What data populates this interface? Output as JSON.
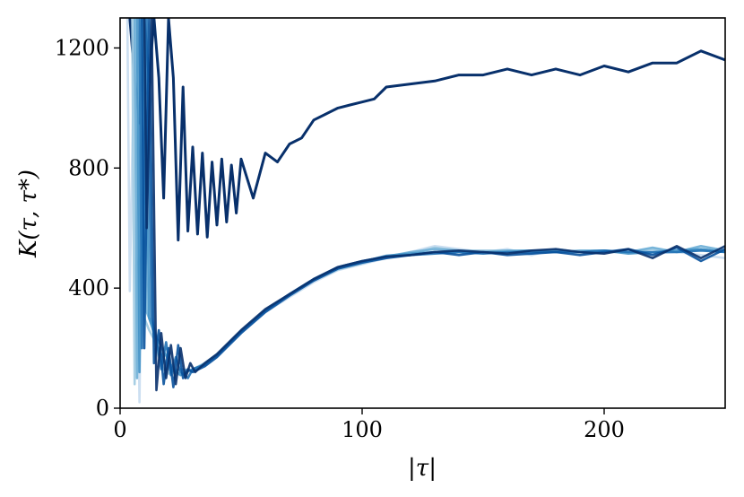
{
  "chart_data": {
    "type": "line",
    "title": "",
    "xlabel": "|τ|",
    "ylabel": "K(τ, τ*)",
    "xlim": [
      0,
      250
    ],
    "ylim": [
      0,
      1300
    ],
    "xticks": [
      0,
      100,
      200
    ],
    "yticks": [
      0,
      400,
      800,
      1200
    ],
    "xtick_labels": [
      "0",
      "100",
      "200"
    ],
    "ytick_labels": [
      "0",
      "400",
      "800",
      "1200"
    ],
    "grid": false,
    "legend": "none",
    "colors": [
      "#c6dbef",
      "#9ecae1",
      "#6baed6",
      "#4292c6",
      "#2171b5",
      "#08519c",
      "#08306b"
    ],
    "series": [
      {
        "color": "#08306b",
        "x": [
          4,
          6,
          8,
          10,
          12,
          14,
          16,
          18,
          20,
          22,
          24,
          26,
          28,
          30,
          32,
          34,
          36,
          38,
          40,
          42,
          44,
          46,
          48,
          50,
          55,
          60,
          65,
          70,
          75,
          80,
          85,
          90,
          95,
          100,
          105,
          110,
          120,
          130,
          140,
          150,
          160,
          170,
          180,
          190,
          200,
          210,
          220,
          230,
          240,
          250
        ],
        "y": [
          1300,
          1100,
          950,
          1300,
          1090,
          1300,
          1100,
          700,
          1300,
          1100,
          560,
          1070,
          590,
          870,
          580,
          850,
          570,
          820,
          610,
          830,
          620,
          810,
          650,
          830,
          700,
          850,
          820,
          880,
          900,
          960,
          980,
          1000,
          1010,
          1020,
          1030,
          1070,
          1080,
          1090,
          1110,
          1110,
          1130,
          1110,
          1130,
          1110,
          1140,
          1120,
          1150,
          1150,
          1190,
          1160
        ]
      },
      {
        "color": "#c6dbef",
        "x": [
          3,
          4,
          6,
          8,
          10,
          12,
          14,
          16,
          18,
          20,
          25,
          30,
          35,
          40,
          50,
          60,
          70,
          80,
          90,
          100,
          110,
          120,
          130,
          140,
          150,
          160,
          170,
          180,
          190,
          200,
          210,
          220,
          230,
          240,
          250
        ],
        "y": [
          1300,
          390,
          1300,
          20,
          1300,
          300,
          260,
          200,
          150,
          120,
          110,
          130,
          140,
          170,
          250,
          320,
          370,
          420,
          460,
          480,
          500,
          520,
          540,
          530,
          520,
          530,
          510,
          530,
          520,
          520,
          525,
          515,
          520,
          510,
          500
        ]
      },
      {
        "color": "#9ecae1",
        "x": [
          5,
          6,
          8,
          10,
          12,
          14,
          16,
          18,
          20,
          25,
          30,
          35,
          40,
          50,
          60,
          70,
          80,
          90,
          100,
          110,
          120,
          130,
          140,
          150,
          160,
          170,
          180,
          190,
          200,
          210,
          220,
          230,
          240,
          250
        ],
        "y": [
          1300,
          80,
          1300,
          300,
          260,
          230,
          170,
          130,
          115,
          120,
          130,
          150,
          175,
          255,
          325,
          375,
          425,
          462,
          482,
          505,
          515,
          535,
          525,
          525,
          525,
          515,
          530,
          520,
          520,
          520,
          530,
          520,
          530,
          520
        ]
      },
      {
        "color": "#6baed6",
        "x": [
          6,
          7,
          9,
          11,
          13,
          15,
          17,
          19,
          21,
          25,
          30,
          35,
          40,
          50,
          60,
          70,
          80,
          90,
          100,
          110,
          120,
          130,
          140,
          150,
          160,
          170,
          180,
          190,
          200,
          210,
          220,
          230,
          240,
          250
        ],
        "y": [
          1300,
          100,
          1300,
          320,
          280,
          210,
          180,
          150,
          120,
          130,
          125,
          150,
          180,
          258,
          328,
          378,
          428,
          465,
          485,
          505,
          520,
          530,
          525,
          520,
          525,
          525,
          520,
          525,
          525,
          520,
          535,
          520,
          540,
          525
        ]
      },
      {
        "color": "#4292c6",
        "x": [
          7,
          8,
          10,
          12,
          14,
          16,
          18,
          20,
          22,
          25,
          30,
          35,
          40,
          50,
          60,
          70,
          80,
          90,
          100,
          110,
          120,
          130,
          140,
          150,
          160,
          170,
          180,
          190,
          200,
          210,
          220,
          230,
          240,
          250
        ],
        "y": [
          1300,
          120,
          1300,
          300,
          250,
          220,
          190,
          160,
          130,
          110,
          130,
          145,
          175,
          255,
          325,
          380,
          430,
          468,
          488,
          508,
          515,
          520,
          520,
          520,
          520,
          525,
          525,
          520,
          525,
          515,
          520,
          525,
          530,
          520
        ]
      },
      {
        "color": "#2171b5",
        "x": [
          8,
          9,
          11,
          13,
          15,
          17,
          19,
          21,
          23,
          25,
          28,
          30,
          35,
          40,
          50,
          60,
          70,
          80,
          90,
          100,
          110,
          120,
          130,
          140,
          150,
          160,
          170,
          180,
          190,
          200,
          210,
          220,
          230,
          240,
          250
        ],
        "y": [
          1300,
          200,
          1300,
          300,
          230,
          130,
          220,
          110,
          170,
          120,
          100,
          130,
          145,
          175,
          255,
          325,
          380,
          430,
          470,
          490,
          505,
          510,
          515,
          520,
          515,
          520,
          520,
          520,
          520,
          525,
          520,
          520,
          520,
          525,
          520
        ]
      },
      {
        "color": "#08519c",
        "x": [
          9,
          10,
          12,
          14,
          16,
          18,
          20,
          22,
          24,
          26,
          28,
          30,
          35,
          40,
          50,
          60,
          70,
          80,
          90,
          100,
          110,
          120,
          130,
          140,
          150,
          160,
          170,
          180,
          190,
          200,
          210,
          220,
          230,
          240,
          250
        ],
        "y": [
          1300,
          200,
          1300,
          150,
          260,
          80,
          200,
          70,
          210,
          100,
          130,
          120,
          140,
          170,
          250,
          320,
          375,
          425,
          465,
          485,
          500,
          510,
          520,
          510,
          520,
          510,
          515,
          520,
          510,
          520,
          530,
          510,
          535,
          490,
          530
        ]
      },
      {
        "color": "#08306b",
        "x": [
          10,
          11,
          13,
          15,
          17,
          19,
          21,
          23,
          25,
          27,
          29,
          31,
          35,
          40,
          50,
          60,
          70,
          80,
          90,
          100,
          110,
          120,
          130,
          140,
          150,
          160,
          170,
          180,
          190,
          200,
          210,
          220,
          230,
          240,
          250
        ],
        "y": [
          1300,
          600,
          1300,
          60,
          250,
          100,
          210,
          80,
          200,
          100,
          150,
          120,
          150,
          180,
          260,
          330,
          380,
          430,
          470,
          490,
          505,
          510,
          520,
          525,
          520,
          515,
          525,
          530,
          520,
          515,
          530,
          500,
          540,
          500,
          540
        ]
      }
    ]
  }
}
